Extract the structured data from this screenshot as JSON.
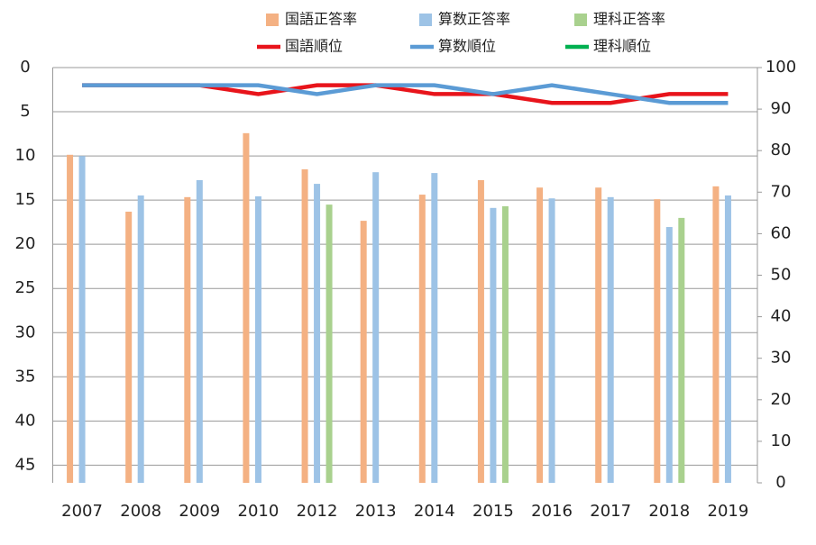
{
  "chart_data": {
    "type": "combo",
    "categories": [
      "2007",
      "2008",
      "2009",
      "2010",
      "2012",
      "2013",
      "2014",
      "2015",
      "2016",
      "2017",
      "2018",
      "2019"
    ],
    "series": [
      {
        "name": "国語正答率",
        "type": "bar",
        "axis": "y2",
        "color": "#f4b183",
        "values": [
          79,
          65.3,
          68.8,
          84.2,
          75.5,
          63.1,
          69.4,
          72.9,
          71.1,
          71.1,
          68.3,
          71.4
        ]
      },
      {
        "name": "算数正答率",
        "type": "bar",
        "axis": "y2",
        "color": "#9dc3e6",
        "values": [
          78.7,
          69.2,
          72.9,
          69,
          72,
          74.8,
          74.6,
          66.2,
          68.5,
          68.8,
          61.6,
          69.2
        ]
      },
      {
        "name": "理科正答率",
        "type": "bar",
        "axis": "y2",
        "color": "#a9d18e",
        "values": [
          null,
          null,
          null,
          null,
          67,
          null,
          null,
          66.6,
          null,
          null,
          63.8,
          null
        ]
      },
      {
        "name": "国語順位",
        "type": "line",
        "color": "#e8141b",
        "values": [
          2,
          2,
          2,
          3,
          2,
          2,
          3,
          3,
          4,
          4,
          3,
          3
        ]
      },
      {
        "name": "算数順位",
        "type": "line",
        "color": "#5b9bd5",
        "values": [
          2,
          2,
          2,
          2,
          3,
          2,
          2,
          3,
          2,
          3,
          4,
          4
        ]
      },
      {
        "name": "理科順位",
        "type": "line",
        "color": "#00b050",
        "values": [
          null,
          null,
          null,
          null,
          null,
          null,
          null,
          null,
          null,
          null,
          null,
          null
        ]
      }
    ],
    "ylim": [
      47,
      0
    ],
    "yticks": [
      0,
      5,
      10,
      15,
      20,
      25,
      30,
      35,
      40,
      45
    ],
    "y2lim": [
      0,
      100
    ],
    "y2ticks": [
      0,
      10,
      20,
      30,
      40,
      50,
      60,
      70,
      80,
      90,
      100
    ],
    "grid": true,
    "legend": "top"
  }
}
